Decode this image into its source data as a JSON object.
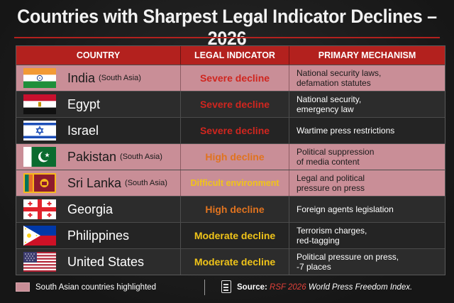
{
  "title": "Countries with Sharpest Legal Indicator Declines – 2026",
  "columns": [
    "COUNTRY",
    "LEGAL INDICATOR",
    "PRIMARY MECHANISM"
  ],
  "rows": [
    {
      "country": "India",
      "region": "(South Asia)",
      "indicator": "Severe decline",
      "indicator_color": "#d0261f",
      "mechanism": "National security laws,\ndefamation statutes",
      "highlight": true,
      "flag": "india-flag"
    },
    {
      "country": "Egypt",
      "region": "",
      "indicator": "Severe decline",
      "indicator_color": "#d0261f",
      "mechanism": "National security,\nemergency law",
      "highlight": false,
      "flag": "egypt-flag"
    },
    {
      "country": "Israel",
      "region": "",
      "indicator": "Severe decline",
      "indicator_color": "#d0261f",
      "mechanism": "Wartime press restrictions",
      "highlight": false,
      "flag": "israel-flag"
    },
    {
      "country": "Pakistan",
      "region": "(South Asia)",
      "indicator": "High decline",
      "indicator_color": "#e0731f",
      "mechanism": "Political suppression\nof media content",
      "highlight": true,
      "flag": "pakistan-flag"
    },
    {
      "country": "Sri Lanka",
      "region": "(South Asia)",
      "indicator": "Difficult environment",
      "indicator_color": "#f0c419",
      "mechanism": "Legal and political\npressure on press",
      "highlight": true,
      "flag": "sri-lanka-flag"
    },
    {
      "country": "Georgia",
      "region": "",
      "indicator": "High decline",
      "indicator_color": "#e0731f",
      "mechanism": "Foreign agents legislation",
      "highlight": false,
      "flag": "georgia-flag"
    },
    {
      "country": "Philippines",
      "region": "",
      "indicator": "Moderate decline",
      "indicator_color": "#f0c419",
      "mechanism": "Terrorism charges,\nred-tagging",
      "highlight": false,
      "flag": "philippines-flag"
    },
    {
      "country": "United States",
      "region": "",
      "indicator": "Moderate decline",
      "indicator_color": "#f0c419",
      "mechanism": "Political pressure on press,\n-7 places",
      "highlight": false,
      "flag": "united-states-flag"
    }
  ],
  "legend": {
    "text": "South Asian countries highlighted",
    "color": "#c98e97"
  },
  "source": {
    "label": "Source:",
    "publisher": "RSF 2026",
    "rest": "World Press Freedom Index.",
    "icon": "document-icon"
  },
  "colors": {
    "accent": "#b3211e",
    "highlight": "#c98e97"
  }
}
